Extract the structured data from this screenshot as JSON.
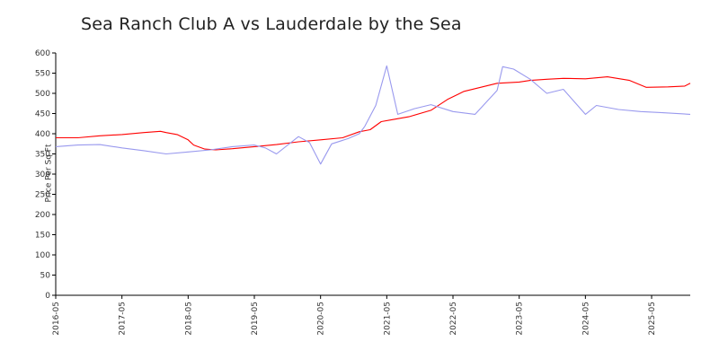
{
  "chart_data": {
    "type": "line",
    "title": "Sea Ranch Club A vs Lauderdale by the Sea",
    "ylabel": "Price Per Sq Ft",
    "xlabel": "",
    "ylim": [
      0,
      600
    ],
    "yticks": [
      0,
      50,
      100,
      150,
      200,
      250,
      300,
      350,
      400,
      450,
      500,
      550,
      600
    ],
    "xticks": [
      "2016-05",
      "2017-05",
      "2018-05",
      "2019-05",
      "2020-05",
      "2021-05",
      "2022-05",
      "2023-05",
      "2024-05",
      "2025-05"
    ],
    "xlim": [
      "2016-05",
      "2025-12"
    ],
    "grid": false,
    "legend": "none",
    "series": [
      {
        "color": "#ff0000",
        "points": [
          [
            "2016-05",
            390
          ],
          [
            "2016-09",
            390
          ],
          [
            "2017-01",
            395
          ],
          [
            "2017-05",
            398
          ],
          [
            "2017-09",
            403
          ],
          [
            "2017-12",
            406
          ],
          [
            "2018-01",
            403
          ],
          [
            "2018-03",
            398
          ],
          [
            "2018-05",
            385
          ],
          [
            "2018-06",
            372
          ],
          [
            "2018-08",
            362
          ],
          [
            "2018-10",
            360
          ],
          [
            "2019-01",
            363
          ],
          [
            "2019-05",
            368
          ],
          [
            "2019-09",
            373
          ],
          [
            "2020-01",
            380
          ],
          [
            "2020-05",
            385
          ],
          [
            "2020-09",
            390
          ],
          [
            "2020-12",
            405
          ],
          [
            "2021-02",
            410
          ],
          [
            "2021-04",
            430
          ],
          [
            "2021-06",
            435
          ],
          [
            "2021-09",
            442
          ],
          [
            "2022-01",
            458
          ],
          [
            "2022-04",
            485
          ],
          [
            "2022-07",
            505
          ],
          [
            "2022-10",
            515
          ],
          [
            "2023-01",
            525
          ],
          [
            "2023-05",
            528
          ],
          [
            "2023-07",
            532
          ],
          [
            "2023-10",
            535
          ],
          [
            "2024-01",
            537
          ],
          [
            "2024-05",
            536
          ],
          [
            "2024-09",
            541
          ],
          [
            "2025-01",
            532
          ],
          [
            "2025-04",
            515
          ],
          [
            "2025-08",
            516
          ],
          [
            "2025-11",
            518
          ],
          [
            "2025-12",
            525
          ]
        ]
      },
      {
        "color": "#9999ee",
        "points": [
          [
            "2016-05",
            368
          ],
          [
            "2016-09",
            372
          ],
          [
            "2017-01",
            373
          ],
          [
            "2017-05",
            365
          ],
          [
            "2017-09",
            358
          ],
          [
            "2018-01",
            350
          ],
          [
            "2018-05",
            355
          ],
          [
            "2018-09",
            360
          ],
          [
            "2019-01",
            368
          ],
          [
            "2019-05",
            372
          ],
          [
            "2019-07",
            365
          ],
          [
            "2019-09",
            350
          ],
          [
            "2020-01",
            393
          ],
          [
            "2020-03",
            378
          ],
          [
            "2020-05",
            325
          ],
          [
            "2020-07",
            375
          ],
          [
            "2020-10",
            388
          ],
          [
            "2020-12",
            400
          ],
          [
            "2021-01",
            418
          ],
          [
            "2021-03",
            470
          ],
          [
            "2021-05",
            568
          ],
          [
            "2021-07",
            448
          ],
          [
            "2021-10",
            462
          ],
          [
            "2022-01",
            472
          ],
          [
            "2022-05",
            455
          ],
          [
            "2022-09",
            448
          ],
          [
            "2023-01",
            507
          ],
          [
            "2023-02",
            566
          ],
          [
            "2023-04",
            560
          ],
          [
            "2023-07",
            535
          ],
          [
            "2023-10",
            500
          ],
          [
            "2024-01",
            510
          ],
          [
            "2024-05",
            448
          ],
          [
            "2024-07",
            470
          ],
          [
            "2024-11",
            460
          ],
          [
            "2025-03",
            455
          ],
          [
            "2025-07",
            452
          ],
          [
            "2025-12",
            448
          ]
        ]
      }
    ]
  }
}
